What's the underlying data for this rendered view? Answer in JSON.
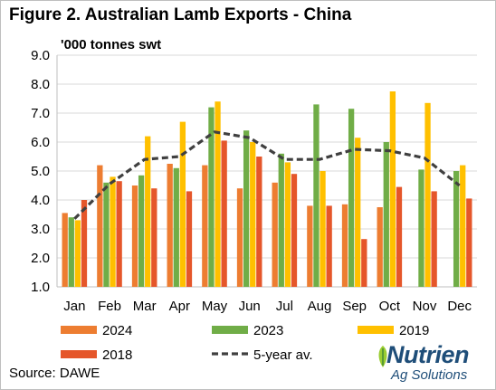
{
  "title": "Figure 2. Australian Lamb Exports - China",
  "source": "Source: DAWE",
  "logo": {
    "name": "Nutrien",
    "tagline": "Ag Solutions"
  },
  "colors": {
    "2024": "#ed7d31",
    "2023": "#70ad47",
    "2019": "#ffc000",
    "2018": "#e5562a",
    "5yr": "#404040",
    "grid": "#d9d9d9"
  },
  "chart_data": {
    "type": "bar",
    "ylabel": "'000 tonnes swt",
    "ylim": [
      1.0,
      9.0
    ],
    "ytick_step": 1.0,
    "yticks": [
      "1.0",
      "2.0",
      "3.0",
      "4.0",
      "5.0",
      "6.0",
      "7.0",
      "8.0",
      "9.0"
    ],
    "categories": [
      "Jan",
      "Feb",
      "Mar",
      "Apr",
      "May",
      "Jun",
      "Jul",
      "Aug",
      "Sep",
      "Oct",
      "Nov",
      "Dec"
    ],
    "series": [
      {
        "name": "2024",
        "type": "bar",
        "color": "#ed7d31",
        "values": [
          3.55,
          5.2,
          4.5,
          5.25,
          5.2,
          4.4,
          4.6,
          3.8,
          3.85,
          3.75,
          null,
          null
        ]
      },
      {
        "name": "2023",
        "type": "bar",
        "color": "#70ad47",
        "values": [
          3.4,
          4.6,
          4.85,
          5.1,
          7.2,
          6.4,
          5.6,
          7.3,
          7.15,
          6.0,
          5.05,
          5.0
        ]
      },
      {
        "name": "2019",
        "type": "bar",
        "color": "#ffc000",
        "values": [
          3.3,
          4.8,
          6.2,
          6.7,
          7.4,
          6.0,
          5.3,
          5.0,
          6.15,
          7.75,
          7.35,
          5.2
        ]
      },
      {
        "name": "2018",
        "type": "bar",
        "color": "#e5562a",
        "values": [
          4.0,
          4.65,
          4.4,
          4.3,
          6.05,
          5.5,
          4.9,
          3.8,
          2.65,
          4.45,
          4.3,
          4.05
        ]
      },
      {
        "name": "5-year av.",
        "type": "line",
        "style": "dashed",
        "color": "#404040",
        "values": [
          3.35,
          4.55,
          5.4,
          5.5,
          6.35,
          6.15,
          5.4,
          5.4,
          5.75,
          5.7,
          5.45,
          4.5
        ]
      }
    ],
    "legend_position": "bottom",
    "grid": true
  }
}
